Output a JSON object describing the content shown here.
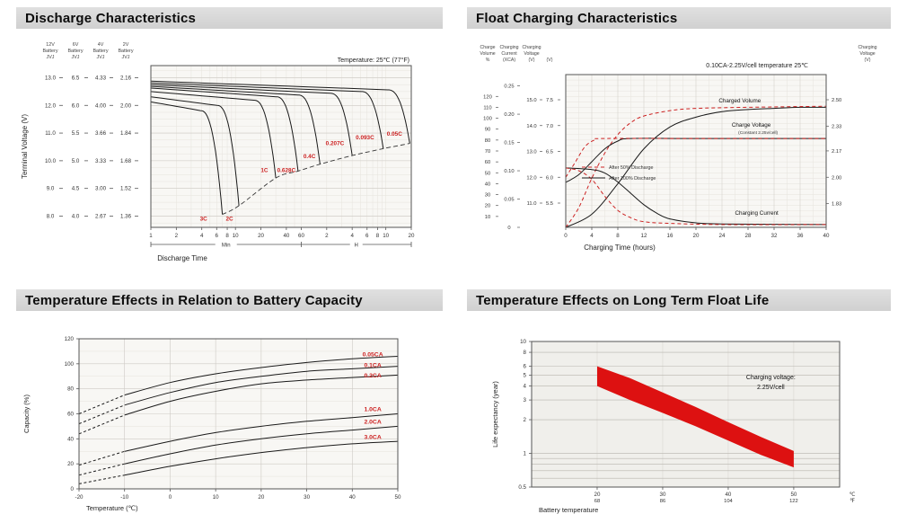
{
  "page": {
    "colors": {
      "accent_red": "#cc2222",
      "curve_color": "#1a1a1a",
      "grid_light": "#e6e3dd",
      "grid_major": "#cdcac4",
      "plot_bg": "#f8f7f4",
      "plot_bg_dark": "#f0efeb",
      "axis_color": "#555555"
    }
  },
  "sections": [
    {
      "title": "Discharge Characteristics"
    },
    {
      "title": "Float Charging Characteristics"
    },
    {
      "title": "Temperature Effects in Relation to Battery Capacity"
    },
    {
      "title": "Temperature Effects on Long Term Float Life"
    }
  ],
  "chart_data": [
    {
      "type": "line",
      "name": "discharge-characteristics",
      "note": "Temperature: 25℃ (77°F)",
      "ylabel": "Terminal Voltage (V)",
      "xlabel": "Discharge Time",
      "y_axes": [
        {
          "header": [
            "12V",
            "Battery",
            "JVJ"
          ],
          "ticks": [
            "13.0",
            "12.0",
            "11.0",
            "10.0",
            "9.0",
            "8.0"
          ]
        },
        {
          "header": [
            "6V",
            "Battery",
            "JVJ"
          ],
          "ticks": [
            "6.5",
            "6.0",
            "5.5",
            "5.0",
            "4.5",
            "4.0"
          ]
        },
        {
          "header": [
            "4V",
            "Battery",
            "JVJ"
          ],
          "ticks": [
            "4.33",
            "4.00",
            "3.66",
            "3.33",
            "3.00",
            "2.67"
          ]
        },
        {
          "header": [
            "2V",
            "Battery",
            "JVJ"
          ],
          "ticks": [
            "2.16",
            "2.00",
            "1.84",
            "1.68",
            "1.52",
            "1.36"
          ]
        }
      ],
      "cell_voltage_ticks": [
        2.16,
        2.0,
        1.84,
        1.68,
        1.52,
        1.36
      ],
      "x_sections": [
        {
          "unit": "Min",
          "ticks": [
            1,
            2,
            4,
            6,
            8,
            10,
            20,
            40,
            60
          ]
        },
        {
          "unit": "H",
          "ticks": [
            2,
            4,
            6,
            8,
            10,
            20
          ]
        }
      ],
      "series": [
        {
          "label": "3C",
          "end_min": 7,
          "start_v": 2.02,
          "cutoff_v": 1.37,
          "label_at": [
            4.2,
            1.335
          ]
        },
        {
          "label": "2C",
          "end_min": 11,
          "start_v": 2.05,
          "cutoff_v": 1.42,
          "label_at": [
            8.5,
            1.335
          ]
        },
        {
          "label": "1C",
          "end_min": 30,
          "start_v": 2.08,
          "cutoff_v": 1.58,
          "label_at": [
            22,
            1.615
          ]
        },
        {
          "label": "0.628C",
          "end_min": 55,
          "start_v": 2.1,
          "cutoff_v": 1.62,
          "label_at": [
            40,
            1.615
          ]
        },
        {
          "label": "0.4C",
          "end_min": 100,
          "start_v": 2.11,
          "cutoff_v": 1.66,
          "label_at": [
            75,
            1.695
          ]
        },
        {
          "label": "0.207C",
          "end_min": 240,
          "start_v": 2.12,
          "cutoff_v": 1.71,
          "label_at": [
            150,
            1.77
          ]
        },
        {
          "label": "0.093C",
          "end_min": 560,
          "start_v": 2.13,
          "cutoff_v": 1.75,
          "label_at": [
            340,
            1.805
          ]
        },
        {
          "label": "0.05C",
          "end_min": 1150,
          "start_v": 2.14,
          "cutoff_v": 1.78,
          "label_at": [
            760,
            1.825
          ]
        }
      ]
    },
    {
      "type": "line",
      "name": "float-charging-characteristics",
      "note": "0.10CA-2.25V/cell  temperature 25℃",
      "xlabel": "Charging Time (hours)",
      "x_ticks": [
        0,
        4,
        8,
        12,
        16,
        20,
        24,
        28,
        32,
        36,
        40
      ],
      "left_axes": [
        {
          "header": [
            "Charge",
            "Volume",
            "%"
          ],
          "ticks": [
            "120",
            "110",
            "100",
            "90",
            "80",
            "70",
            "60",
            "50",
            "40",
            "30",
            "20",
            "10"
          ]
        },
        {
          "header": [
            "Charging",
            "Current",
            "(XCA)"
          ],
          "ticks": [
            "0.25",
            "0.20",
            "0.15",
            "0.10",
            "0.05",
            "0"
          ]
        },
        {
          "header": [
            "Charging",
            "Voltage",
            "(V)"
          ],
          "ticks": [
            "15.0",
            "14.0",
            "13.0",
            "12.0",
            "11.0"
          ]
        },
        {
          "header": [
            "",
            "",
            "(V)"
          ],
          "ticks": [
            "7.5",
            "7.0",
            "6.5",
            "6.0",
            "5.5"
          ]
        }
      ],
      "right_axis": {
        "header": [
          "Charging",
          "Voltage",
          "(V)"
        ],
        "ticks": [
          "2.50",
          "2.33",
          "2.17",
          "2.00",
          "1.83"
        ]
      },
      "curve_labels": {
        "volume": "Charged Volume",
        "voltage": "Charge Voltage",
        "voltage_sub": "(Constant 2.25v/cell)",
        "current": "Charging Current"
      },
      "legend": [
        {
          "label": "After  50% Discharge",
          "style": "dashed"
        },
        {
          "label": "After 100% Discharge",
          "style": "solid"
        }
      ],
      "series": [
        {
          "name": "charged-volume-100",
          "axis": "volume",
          "style": "solid",
          "points": [
            [
              0,
              0
            ],
            [
              4,
              12
            ],
            [
              8,
              40
            ],
            [
              12,
              72
            ],
            [
              16,
              92
            ],
            [
              20,
              101
            ],
            [
              24,
              106
            ],
            [
              28,
              108
            ],
            [
              32,
              109
            ],
            [
              36,
              110
            ],
            [
              40,
              110
            ]
          ]
        },
        {
          "name": "charged-volume-50",
          "axis": "volume",
          "style": "dashed",
          "points": [
            [
              0,
              0
            ],
            [
              2,
              18
            ],
            [
              4,
              45
            ],
            [
              6,
              68
            ],
            [
              8,
              85
            ],
            [
              10,
              96
            ],
            [
              12,
              102
            ],
            [
              16,
              107
            ],
            [
              20,
              109
            ],
            [
              28,
              110
            ],
            [
              40,
              111
            ]
          ]
        },
        {
          "name": "charge-voltage-100",
          "axis": "voltage",
          "style": "solid",
          "points": [
            [
              0,
              11.8
            ],
            [
              2,
              12.1
            ],
            [
              4,
              12.6
            ],
            [
              6,
              13.1
            ],
            [
              8,
              13.4
            ],
            [
              10,
              13.5
            ],
            [
              20,
              13.5
            ],
            [
              40,
              13.5
            ]
          ]
        },
        {
          "name": "charge-voltage-50",
          "axis": "voltage",
          "style": "dashed",
          "points": [
            [
              0,
              12.0
            ],
            [
              1.5,
              12.6
            ],
            [
              3,
              13.2
            ],
            [
              4.5,
              13.45
            ],
            [
              6,
              13.5
            ],
            [
              20,
              13.5
            ],
            [
              40,
              13.5
            ]
          ]
        },
        {
          "name": "charging-current-100",
          "axis": "current",
          "style": "solid",
          "points": [
            [
              0,
              0.105
            ],
            [
              4,
              0.102
            ],
            [
              6,
              0.096
            ],
            [
              8,
              0.08
            ],
            [
              10,
              0.06
            ],
            [
              12,
              0.04
            ],
            [
              14,
              0.025
            ],
            [
              16,
              0.015
            ],
            [
              20,
              0.008
            ],
            [
              24,
              0.006
            ],
            [
              40,
              0.005
            ]
          ]
        },
        {
          "name": "charging-current-50",
          "axis": "current",
          "style": "dashed",
          "points": [
            [
              0,
              0.105
            ],
            [
              2,
              0.1
            ],
            [
              4,
              0.085
            ],
            [
              6,
              0.055
            ],
            [
              8,
              0.03
            ],
            [
              10,
              0.017
            ],
            [
              12,
              0.01
            ],
            [
              16,
              0.007
            ],
            [
              24,
              0.005
            ],
            [
              40,
              0.005
            ]
          ]
        }
      ]
    },
    {
      "type": "line",
      "name": "temperature-vs-capacity",
      "xlabel": "Temperature (℃)",
      "ylabel": "Capacity (%)",
      "x_ticks": [
        -20,
        -10,
        0,
        10,
        20,
        30,
        40,
        50
      ],
      "y_ticks": [
        0,
        20,
        40,
        60,
        80,
        100,
        120
      ],
      "dash_split_c": -10,
      "label_x_c": 44.5,
      "series": [
        {
          "label": "0.05CA",
          "label_v": 106,
          "points": [
            [
              -20,
              60
            ],
            [
              -10,
              75
            ],
            [
              0,
              85
            ],
            [
              10,
              92
            ],
            [
              20,
              97
            ],
            [
              30,
              101
            ],
            [
              40,
              104
            ],
            [
              50,
              106
            ]
          ]
        },
        {
          "label": "0.1CA",
          "label_v": 97.5,
          "points": [
            [
              -20,
              52
            ],
            [
              -10,
              67
            ],
            [
              0,
              77
            ],
            [
              10,
              85
            ],
            [
              20,
              90
            ],
            [
              30,
              94
            ],
            [
              40,
              96
            ],
            [
              50,
              98
            ]
          ]
        },
        {
          "label": "0.2CA",
          "label_v": 89,
          "points": [
            [
              -20,
              44
            ],
            [
              -10,
              59
            ],
            [
              0,
              70
            ],
            [
              10,
              78
            ],
            [
              20,
              84
            ],
            [
              30,
              87
            ],
            [
              40,
              89
            ],
            [
              50,
              91
            ]
          ]
        },
        {
          "label": "1.0CA",
          "label_v": 62,
          "points": [
            [
              -20,
              19
            ],
            [
              -10,
              30
            ],
            [
              0,
              38
            ],
            [
              10,
              45
            ],
            [
              20,
              50
            ],
            [
              30,
              54
            ],
            [
              40,
              57
            ],
            [
              50,
              60
            ]
          ]
        },
        {
          "label": "2.0CA",
          "label_v": 52,
          "points": [
            [
              -20,
              11
            ],
            [
              -10,
              20
            ],
            [
              0,
              28
            ],
            [
              10,
              35
            ],
            [
              20,
              40
            ],
            [
              30,
              44
            ],
            [
              40,
              47
            ],
            [
              50,
              50
            ]
          ]
        },
        {
          "label": "3.0CA",
          "label_v": 40,
          "points": [
            [
              -20,
              4
            ],
            [
              -10,
              11
            ],
            [
              0,
              18
            ],
            [
              10,
              24
            ],
            [
              20,
              29
            ],
            [
              30,
              33
            ],
            [
              40,
              36
            ],
            [
              50,
              38
            ]
          ]
        }
      ]
    },
    {
      "type": "band",
      "name": "long-term-float-life",
      "xlabel": "Battery temperature",
      "ylabel": "Life expectancy (year)",
      "y_ticks": [
        10,
        8,
        6,
        5,
        4,
        3,
        2,
        1,
        0.5
      ],
      "y_minor_ticks": [
        0.9,
        0.8,
        0.7,
        0.6
      ],
      "x_ticks": [
        {
          "c": "20",
          "f": "68"
        },
        {
          "c": "30",
          "f": "86"
        },
        {
          "c": "40",
          "f": "104"
        },
        {
          "c": "50",
          "f": "122"
        }
      ],
      "x_tick_c_values": [
        20,
        30,
        40,
        50
      ],
      "unit_c": "℃",
      "unit_f": "℉",
      "annotation": [
        "Charging voltage:",
        "2.25V/cell"
      ],
      "band_color": "#dd1111",
      "band_upper": [
        [
          20,
          6.0
        ],
        [
          25,
          4.7
        ],
        [
          30,
          3.5
        ],
        [
          35,
          2.6
        ],
        [
          40,
          1.9
        ],
        [
          45,
          1.4
        ],
        [
          50,
          1.05
        ]
      ],
      "band_lower": [
        [
          20,
          4.0
        ],
        [
          25,
          3.0
        ],
        [
          30,
          2.3
        ],
        [
          35,
          1.75
        ],
        [
          40,
          1.3
        ],
        [
          45,
          0.97
        ],
        [
          50,
          0.75
        ]
      ]
    }
  ]
}
